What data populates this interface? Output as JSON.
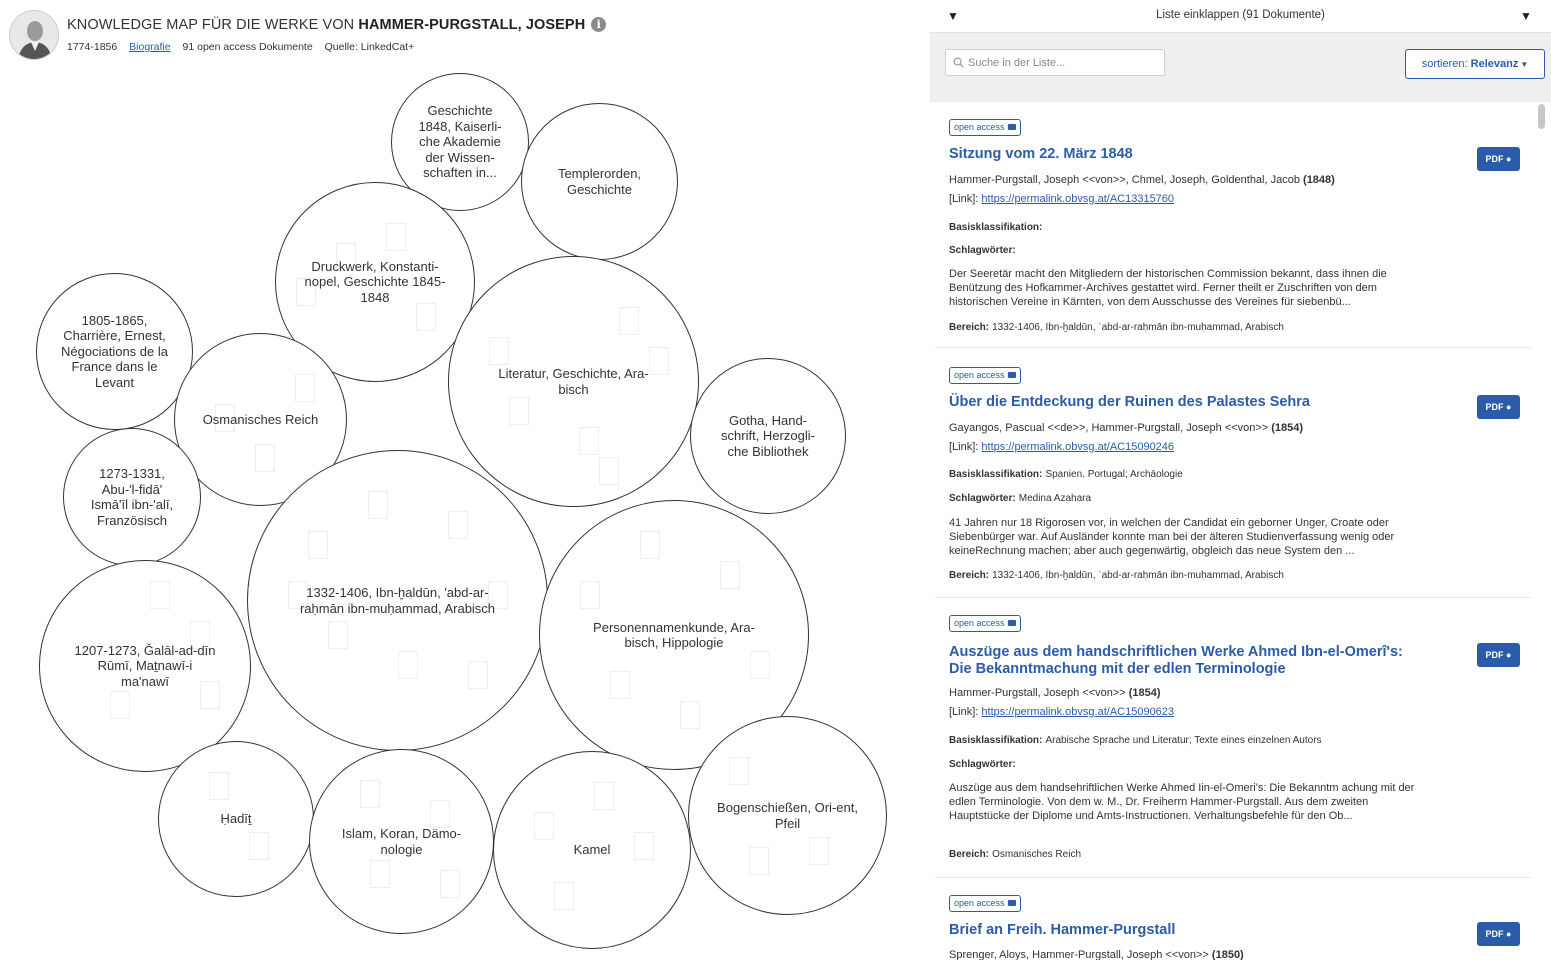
{
  "header": {
    "title_prefix": "KNOWLEDGE MAP FÜR DIE WERKE VON",
    "title_author": "HAMMER-PURGSTALL, JOSEPH",
    "info_icon": "info-icon",
    "years": "1774-1856",
    "bio_link": "Biografie",
    "doc_count": "91 open access Dokumente",
    "source": "Quelle: LinkedCat+"
  },
  "bubbles": [
    {
      "label": "Geschichte 1848, Kaiserli-che Akademie der Wissen-schaften in..."
    },
    {
      "label": "Templerorden, Geschichte"
    },
    {
      "label": "Druckwerk, Konstanti-nopel, Geschichte 1845-1848"
    },
    {
      "label": "1805-1865, Charrière, Ernest, Négociations de la France dans le Levant"
    },
    {
      "label": "Osmanisches Reich"
    },
    {
      "label": "Literatur, Geschichte, Ara-bisch"
    },
    {
      "label": "Gotha, Hand-schrift, Herzogli-che Bibliothek"
    },
    {
      "label": "1273-1331, Abu-'l-fidā' Ismā'īl ibn-'alī, Französisch"
    },
    {
      "label": "1332-1406, Ibn-ḫaldūn, 'abd-ar-raḥmān ibn-muḥammad, Arabisch"
    },
    {
      "label": "Personennamenkunde, Ara-bisch, Hippologie"
    },
    {
      "label": "1207-1273, Ǧalāl-ad-dīn Rūmī, Maṯnawī-i ma'nawī"
    },
    {
      "label": "Ḥadīṯ"
    },
    {
      "label": "Islam, Koran, Dämo-nologie"
    },
    {
      "label": "Kamel"
    },
    {
      "label": "Bogenschießen, Ori-ent, Pfeil"
    }
  ],
  "panel": {
    "collapse_label": "Liste einklappen (91 Dokumente)",
    "search_placeholder": "Suche in der Liste...",
    "sort_prefix": "sortieren:",
    "sort_value": "Relevanz",
    "open_access_label": "open access",
    "pdf_label": "PDF",
    "link_prefix": "[Link]:",
    "basis_label": "Basisklassifikation:",
    "tags_label": "Schlagwörter:",
    "area_label": "Bereich:"
  },
  "documents": [
    {
      "title": "Sitzung vom 22. März 1848",
      "authors": "Hammer-Purgstall, Joseph <<von>>, Chmel, Joseph, Goldenthal, Jacob",
      "year": "(1848)",
      "link": "https://permalink.obvsg.at/AC13315760",
      "basis": "",
      "tags": "",
      "abstract": "Der Seeretär macht den Mitgliedern der historischen Commission bekannt, dass ihnen die Benützung des Hofkammer-Archives gestattet wird. Ferner theilt er Zuschriften von dem historischen Vereine in Kärnten, von dem Ausschusse des Vereines für siebenbü...",
      "area": "1332-1406, Ibn-ḫaldūn, ʿabd-ar-raḥmān ibn-muḥammad, Arabisch"
    },
    {
      "title": "Über die Entdeckung der Ruinen des Palastes Sehra",
      "authors": "Gayangos, Pascual <<de>>, Hammer-Purgstall, Joseph <<von>>",
      "year": "(1854)",
      "link": "https://permalink.obvsg.at/AC15090246",
      "basis": "Spanien. Portugal; Archäologie",
      "tags": "Medina Azahara",
      "abstract": "41 Jahren nur 18 Rigorosen vor, in welchen der Candidat ein geborner Unger, Croate oder Siebenbürger war. Auf Ausländer konnte man bei der älteren Studienverfassung wenig oder keineRechnung machen; aber auch gegenwärtig, obgleich das neue System den ...",
      "area": "1332-1406, Ibn-ḫaldūn, ʿabd-ar-raḥmān ibn-muḥammad, Arabisch"
    },
    {
      "title": "Auszüge aus dem handschriftlichen Werke Ahmed Ibn-el-Omerî's: Die Bekanntmachung mit der edlen Terminologie",
      "authors": "Hammer-Purgstall, Joseph <<von>>",
      "year": "(1854)",
      "link": "https://permalink.obvsg.at/AC15090623",
      "basis": "Arabische Sprache und Literatur; Texte eines einzelnen Autors",
      "tags": "",
      "abstract": "Auszüge aus dem handsehriftlichen Werke Ahmed Iin-el-Omeri's: Die Bekanntm achung mit der edlen Terminologie. Von dem w. M., Dr. Freiherrn Hammer-Purgstall. Aus dem zweiten Hauptstücke der Diplome und Amts-Instructionen. Verhaltungsbefehle für den Ob...",
      "area": "Osmanisches Reich"
    },
    {
      "title": "Brief an Freih. Hammer-Purgstall",
      "authors": "Sprenger, Aloys, Hammer-Purgstall, Joseph <<von>>",
      "year": "(1850)",
      "link": "",
      "basis": "",
      "tags": "",
      "abstract": "",
      "area": ""
    }
  ]
}
